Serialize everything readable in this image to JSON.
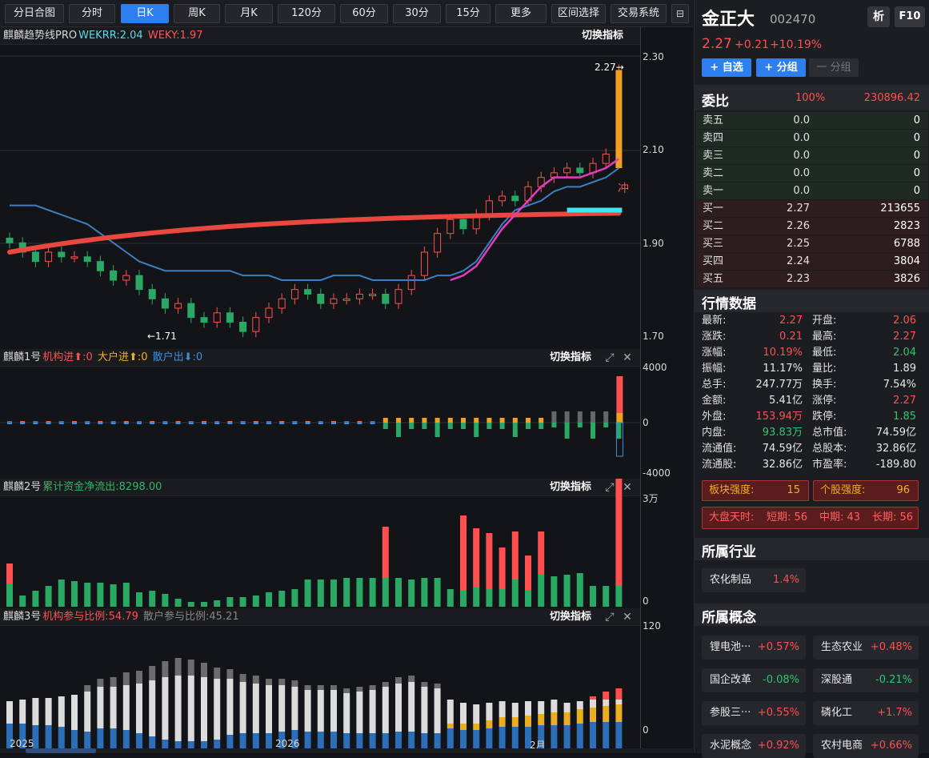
{
  "toolbar": {
    "buttons": [
      "分日合图",
      "分时",
      "日K",
      "周K",
      "月K",
      "120分",
      "60分",
      "30分",
      "15分",
      "更多",
      "区间选择",
      "交易系统"
    ],
    "active_index": 2
  },
  "panel_main": {
    "title": "麒麟趋势线PRO",
    "l1": "WEKRR:2.04",
    "l2": "WEKY:1.97",
    "switch_label": "切换指标",
    "y_labels": [
      "2.30",
      "2.10",
      "1.90",
      "1.70"
    ],
    "high_marker": "2.27→",
    "low_marker": "←1.71",
    "signal": "冲"
  },
  "panel1": {
    "title": "麒麟1号",
    "l1": "机构进⬆:0",
    "l2": "大户进⬆:0",
    "l3": "散户出⬇:0",
    "switch_label": "切换指标",
    "y_labels": [
      "4000",
      "0",
      "-4000"
    ]
  },
  "panel2": {
    "title": "麒麟2号",
    "l1": "累计资金净流出:8298.00",
    "switch_label": "切换指标",
    "y_labels": [
      "3万",
      "0"
    ]
  },
  "panel3": {
    "title": "麒麟3号",
    "l1": "机构参与比例:54.79",
    "l2": "散户参与比例:45.21",
    "switch_label": "切换指标",
    "y_labels": [
      "120",
      "0"
    ],
    "x_labels": [
      "2025",
      "2026",
      "2月"
    ]
  },
  "stock": {
    "name": "金正大",
    "code": "002470",
    "btn_analyze": "析",
    "btn_f10": "F10",
    "price": "2.27",
    "change": "+0.21",
    "change_pct": "+10.19%",
    "btn_watch": "+ 自选",
    "btn_group": "+ 分组",
    "btn_ungroup": "一 分组"
  },
  "orderbook": {
    "title": "委比",
    "ratio": "100%",
    "diff": "230896.42",
    "rows": [
      {
        "label": "卖五",
        "price": "0.0",
        "vol": "0"
      },
      {
        "label": "卖四",
        "price": "0.0",
        "vol": "0"
      },
      {
        "label": "卖三",
        "price": "0.0",
        "vol": "0"
      },
      {
        "label": "卖二",
        "price": "0.0",
        "vol": "0"
      },
      {
        "label": "卖一",
        "price": "0.0",
        "vol": "0"
      },
      {
        "label": "买一",
        "price": "2.27",
        "vol": "213655"
      },
      {
        "label": "买二",
        "price": "2.26",
        "vol": "2823"
      },
      {
        "label": "买三",
        "price": "2.25",
        "vol": "6788"
      },
      {
        "label": "买四",
        "price": "2.24",
        "vol": "3804"
      },
      {
        "label": "买五",
        "price": "2.23",
        "vol": "3826"
      }
    ]
  },
  "quote": {
    "title": "行情数据",
    "rows": [
      {
        "k1": "最新:",
        "v1": "2.27",
        "c1": "red",
        "k2": "开盘:",
        "v2": "2.06",
        "c2": "red"
      },
      {
        "k1": "涨跌:",
        "v1": "0.21",
        "c1": "red",
        "k2": "最高:",
        "v2": "2.27",
        "c2": "red"
      },
      {
        "k1": "涨幅:",
        "v1": "10.19%",
        "c1": "red",
        "k2": "最低:",
        "v2": "2.04",
        "c2": "green"
      },
      {
        "k1": "振幅:",
        "v1": "11.17%",
        "c1": "white",
        "k2": "量比:",
        "v2": "1.89",
        "c2": "white"
      },
      {
        "k1": "总手:",
        "v1": "247.77万",
        "c1": "white",
        "k2": "换手:",
        "v2": "7.54%",
        "c2": "white"
      },
      {
        "k1": "金额:",
        "v1": "5.41亿",
        "c1": "white",
        "k2": "涨停:",
        "v2": "2.27",
        "c2": "red"
      },
      {
        "k1": "外盘:",
        "v1": "153.94万",
        "c1": "red",
        "k2": "跌停:",
        "v2": "1.85",
        "c2": "green"
      },
      {
        "k1": "内盘:",
        "v1": "93.83万",
        "c1": "green",
        "k2": "总市值:",
        "v2": "74.59亿",
        "c2": "white"
      },
      {
        "k1": "流通值:",
        "v1": "74.59亿",
        "c1": "white",
        "k2": "总股本:",
        "v2": "32.86亿",
        "c2": "white"
      },
      {
        "k1": "流通股:",
        "v1": "32.86亿",
        "c1": "white",
        "k2": "市盈率:",
        "v2": "-189.80",
        "c2": "white"
      }
    ]
  },
  "strength": {
    "sector_label": "板块强度:",
    "sector_value": "15",
    "stock_label": "个股强度:",
    "stock_value": "96",
    "market_label": "大盘天时:",
    "market_short": "短期: 56",
    "market_mid": "中期: 43",
    "market_long": "长期: 56"
  },
  "industry": {
    "title": "所属行业",
    "items": [
      {
        "name": "农化制品",
        "change": "1.4%"
      }
    ]
  },
  "concepts": {
    "title": "所属概念",
    "items": [
      {
        "name": "锂电池···",
        "change": "+0.57%",
        "color": "red"
      },
      {
        "name": "生态农业",
        "change": "+0.48%",
        "color": "red"
      },
      {
        "name": "国企改革",
        "change": "-0.08%",
        "color": "green"
      },
      {
        "name": "深股通",
        "change": "-0.21%",
        "color": "green"
      },
      {
        "name": "参股三···",
        "change": "+0.55%",
        "color": "red"
      },
      {
        "name": "磷化工",
        "change": "+1.7%",
        "color": "red"
      },
      {
        "name": "水泥概念",
        "change": "+0.92%",
        "color": "red"
      },
      {
        "name": "农村电商",
        "change": "+0.66%",
        "color": "red"
      }
    ]
  },
  "colors": {
    "up": "#ff4f4f",
    "down": "#2aa866",
    "accent": "#2d7ff0",
    "ma_red": "#e8483f",
    "ma_blue": "#3b7fc0",
    "ma_pink": "#e23cc0",
    "cyan": "#3ce8f0",
    "orange": "#f0a020"
  }
}
